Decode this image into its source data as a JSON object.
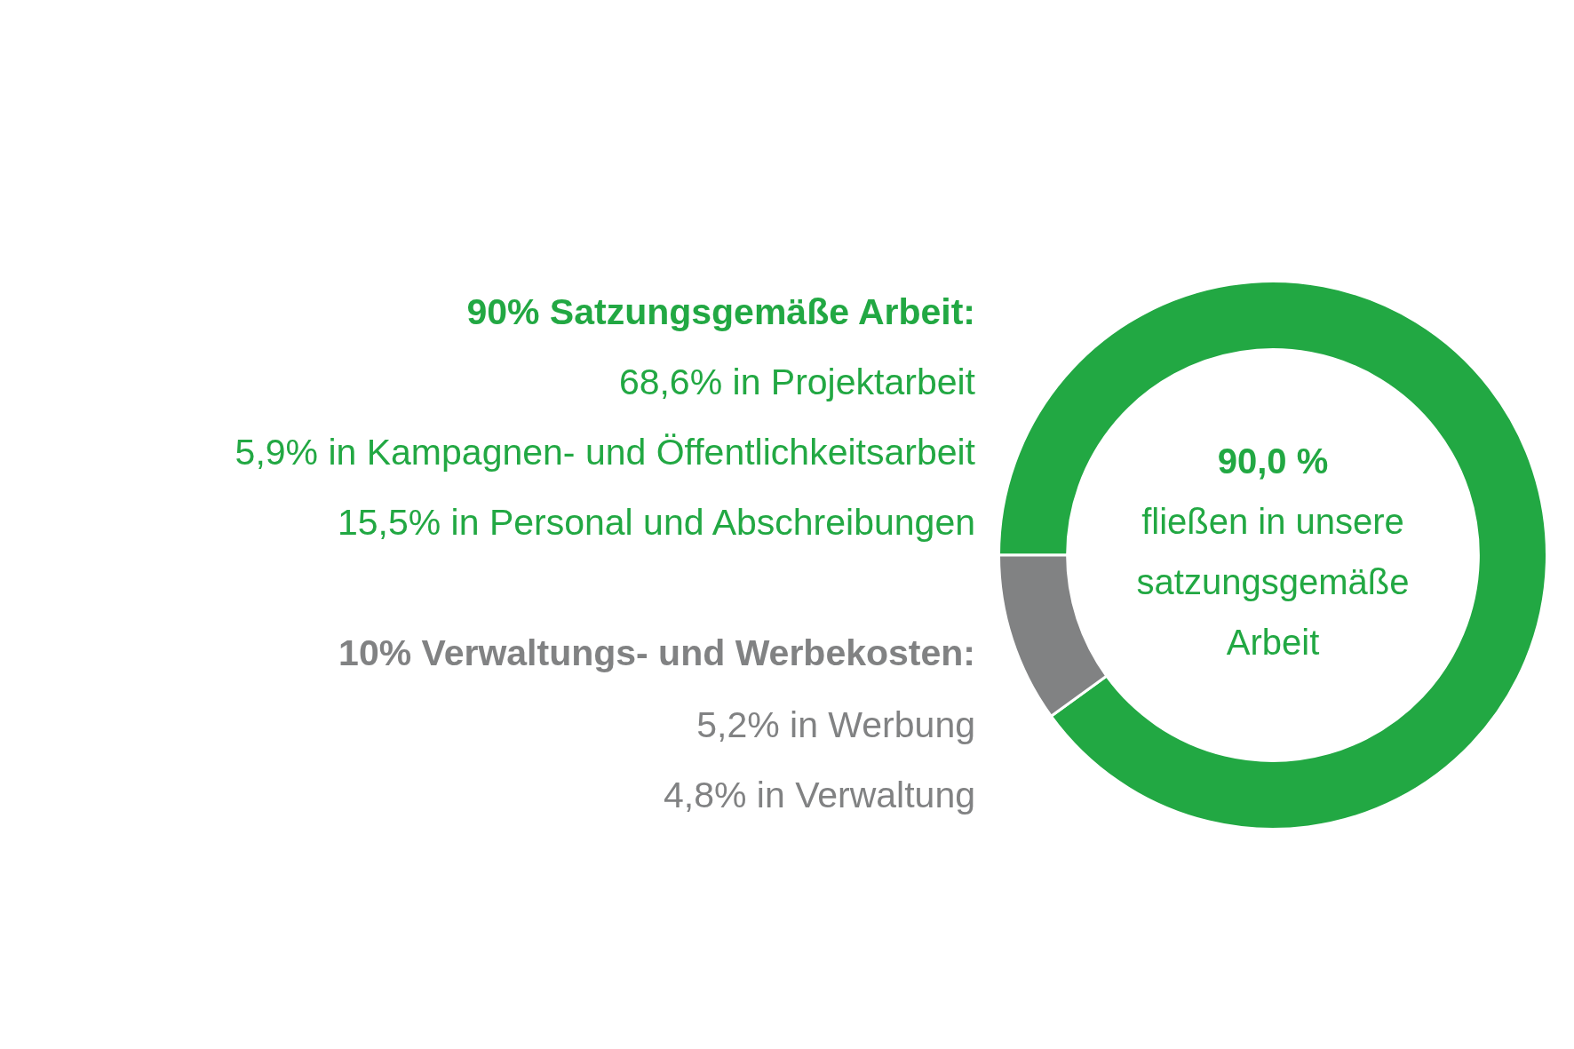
{
  "chart_data": {
    "type": "donut",
    "categories": [
      null,
      null
    ],
    "values": [
      90,
      10
    ],
    "colors": [
      "#22a843",
      "#818283"
    ],
    "legend": false,
    "annotations": [
      "90% Satzungsgemäße Arbeit:",
      "68,6% in Projektarbeit",
      "5,9% in Kampagnen- und Öffentlichkeitsarbeit",
      "15,5% in Personal und Abschreibungen",
      "10% Verwaltungs- und Werbekosten:",
      "5,2% in Werbung",
      "4,8% in Verwaltung",
      "90,0 %",
      "fließen in unsere",
      "satzungsgemäße",
      "Arbeit"
    ]
  }
}
